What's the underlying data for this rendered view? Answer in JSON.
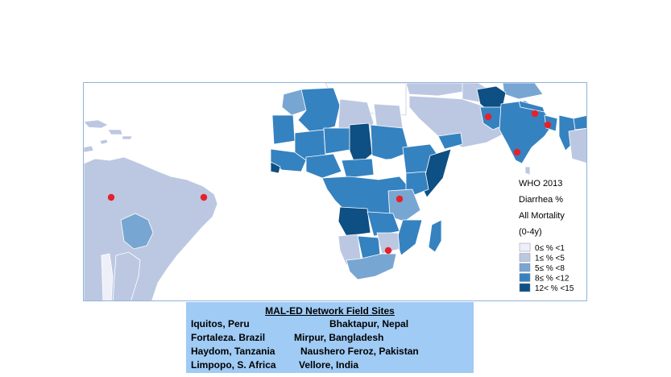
{
  "map": {
    "legend": {
      "title_lines": [
        "WHO 2013",
        "Diarrhea %",
        "All Mortality",
        "(0-4y)"
      ],
      "items": [
        {
          "label": "0≤ % <1",
          "color": "#eeeff8"
        },
        {
          "label": "1≤ % <5",
          "color": "#bcc8e2"
        },
        {
          "label": "5≤ % <8",
          "color": "#78a6d2"
        },
        {
          "label": "8≤ % <12",
          "color": "#3582c0"
        },
        {
          "label": "12< % <15",
          "color": "#0e4f84"
        }
      ]
    },
    "colors": {
      "no_data": "#ffffff",
      "border": "#ffffff",
      "site_marker": "#e8202a",
      "frame": "#8fb4d9"
    }
  },
  "sites": {
    "title": "MAL-ED Network Field Sites",
    "rows": [
      {
        "left": "Iquitos, Peru",
        "right": "Bhaktapur, Nepal"
      },
      {
        "left": "Fortaleza. Brazil",
        "right": "Mirpur, Bangladesh"
      },
      {
        "left": "Haydom, Tanzania",
        "right": "Naushero Feroz, Pakistan"
      },
      {
        "left": "Limpopo, S. Africa",
        "right": "Vellore, India"
      }
    ]
  }
}
